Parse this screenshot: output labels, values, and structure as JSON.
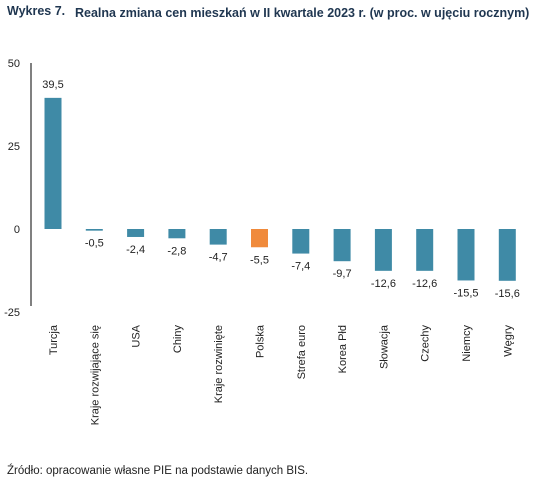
{
  "header": {
    "label": "Wykres 7.",
    "title": "Realna zmiana cen mieszkań w II kwartale 2023 r. (w proc. w ujęciu rocznym)"
  },
  "source": "Źródło: opracowanie własne PIE na podstawie danych BIS.",
  "colors": {
    "bar": "#3f8aa6",
    "highlight": "#f08a3b",
    "axis": "#000000"
  },
  "chart_data": {
    "type": "bar",
    "title": "",
    "xlabel": "",
    "ylabel": "",
    "ylim": [
      -25,
      50
    ],
    "yticks": [
      50,
      25,
      0,
      -25
    ],
    "grid": false,
    "categories": [
      "Turcja",
      "Kraje rozwijające się",
      "USA",
      "Chiny",
      "Kraje rozwinięte",
      "Polska",
      "Strefa euro",
      "Korea Płd",
      "Słowacja",
      "Czechy",
      "Niemcy",
      "Węgry"
    ],
    "values": [
      39.5,
      -0.5,
      -2.4,
      -2.8,
      -4.7,
      -5.5,
      -7.4,
      -9.7,
      -12.6,
      -12.6,
      -15.5,
      -15.6
    ],
    "data_labels": [
      "39,5",
      "-0,5",
      "-2,4",
      "-2,8",
      "-4,7",
      "-5,5",
      "-7,4",
      "-9,7",
      "-12,6",
      "-12,6",
      "-15,5",
      "-15,6"
    ],
    "highlight": "Polska"
  }
}
